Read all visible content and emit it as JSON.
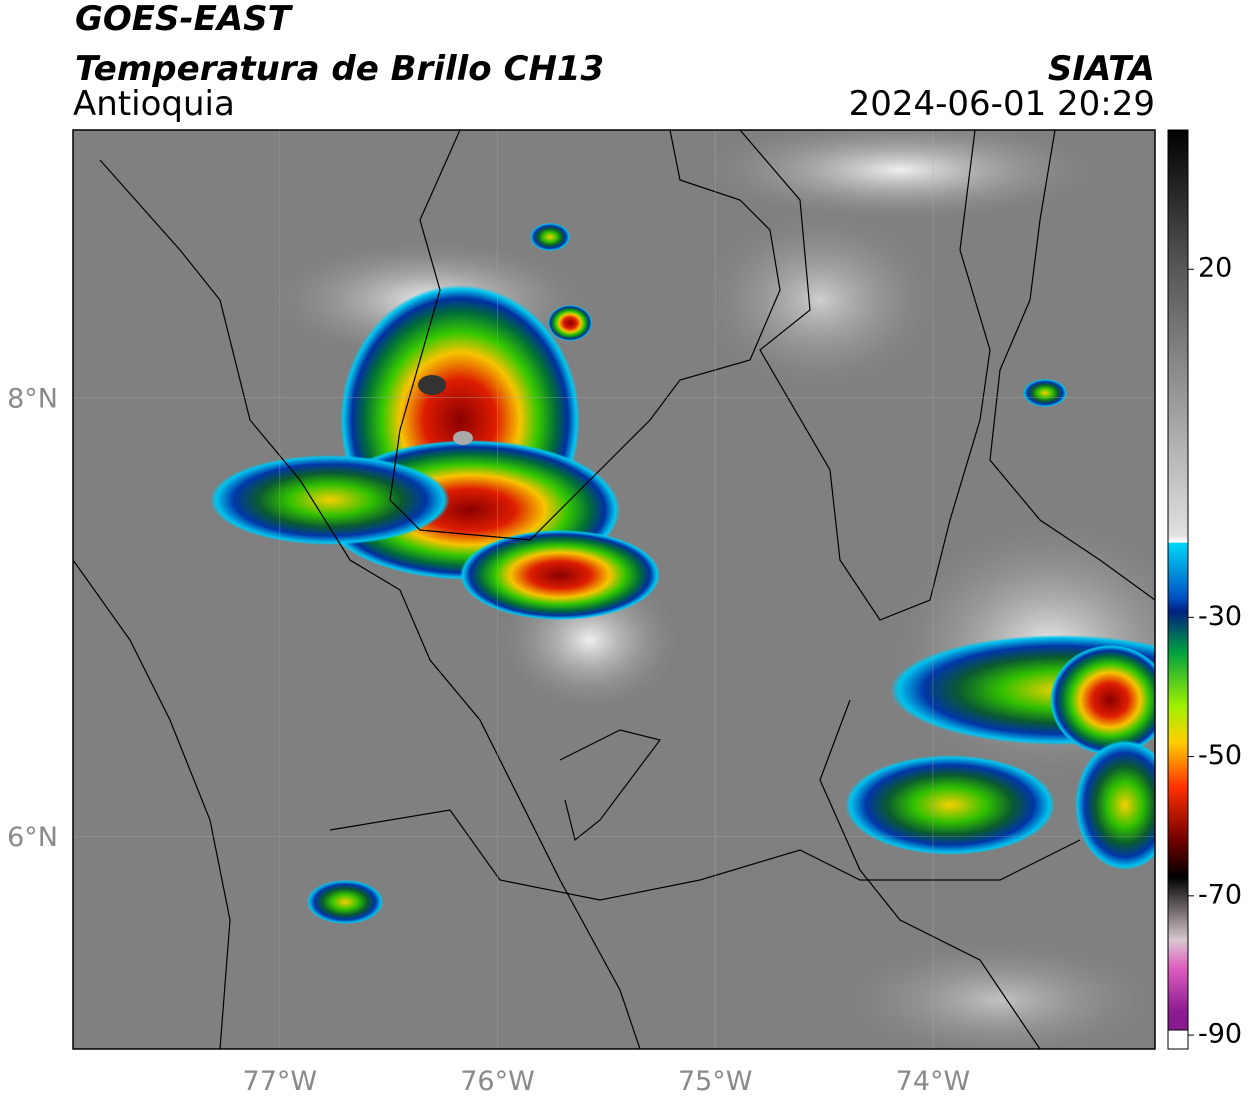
{
  "header": {
    "satellite": "GOES-EAST",
    "product": "Temperatura de Brillo CH13",
    "region": "Antioquia",
    "agency": "SIATA",
    "datetime": "2024-06-01 20:29"
  },
  "map": {
    "xlim": [
      -77.95,
      -72.98
    ],
    "ylim": [
      5.03,
      9.22
    ],
    "xticks": [
      {
        "value": -77,
        "label": "77°W"
      },
      {
        "value": -76,
        "label": "76°W"
      },
      {
        "value": -75,
        "label": "75°W"
      },
      {
        "value": -74,
        "label": "74°W"
      }
    ],
    "yticks": [
      {
        "value": 8,
        "label": "8°N"
      },
      {
        "value": 6,
        "label": "6°N"
      }
    ]
  },
  "colorbar": {
    "range": [
      -92,
      40
    ],
    "ticks": [
      20,
      -30,
      -50,
      -70,
      -90
    ]
  }
}
